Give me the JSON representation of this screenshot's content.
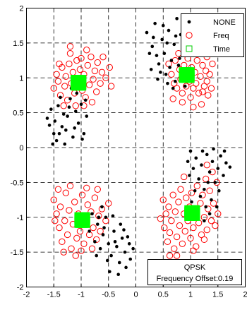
{
  "chart_data": {
    "type": "scatter",
    "title": "",
    "xlabel": "",
    "ylabel": "",
    "xlim": [
      -2,
      2
    ],
    "ylim": [
      -2,
      2
    ],
    "xticks": [
      "-2",
      "-1.5",
      "-1",
      "-0.5",
      "0",
      "0.5",
      "1",
      "1.5",
      "2"
    ],
    "yticks": [
      "-2",
      "-1.5",
      "-1",
      "-0.5",
      "0",
      "0.5",
      "1",
      "1.5",
      "2"
    ],
    "grid": true,
    "grid_style": "dashed",
    "legend_position": "top-right",
    "series": [
      {
        "name": "NONE",
        "marker": "dot",
        "color": "#000000",
        "points": [
          [
            -1.62,
            0.42
          ],
          [
            -1.55,
            0.55
          ],
          [
            -1.48,
            0.38
          ],
          [
            -1.5,
            0.2
          ],
          [
            -1.42,
            0.6
          ],
          [
            -1.35,
            0.3
          ],
          [
            -1.3,
            0.05
          ],
          [
            -1.25,
            0.45
          ],
          [
            -1.2,
            0.7
          ],
          [
            -1.15,
            0.15
          ],
          [
            -1.1,
            0.52
          ],
          [
            -1.05,
            0.35
          ],
          [
            -1.0,
            0.62
          ],
          [
            -0.95,
            0.2
          ],
          [
            -0.9,
            0.45
          ],
          [
            -1.38,
            0.72
          ],
          [
            -1.45,
            0.1
          ],
          [
            -1.18,
            0.85
          ],
          [
            -1.28,
            0.25
          ],
          [
            -0.98,
            0.12
          ],
          [
            -1.52,
            0.05
          ],
          [
            -1.08,
            0.78
          ],
          [
            -1.32,
            0.48
          ],
          [
            -1.22,
            0.58
          ],
          [
            -0.92,
            0.68
          ],
          [
            -1.4,
            0.2
          ],
          [
            -1.12,
            0.28
          ],
          [
            -1.58,
            0.32
          ],
          [
            0.2,
            1.65
          ],
          [
            0.3,
            1.45
          ],
          [
            0.35,
            1.78
          ],
          [
            0.42,
            1.2
          ],
          [
            0.48,
            1.55
          ],
          [
            0.52,
            1.35
          ],
          [
            0.55,
            1.05
          ],
          [
            0.6,
            1.68
          ],
          [
            0.65,
            1.25
          ],
          [
            0.7,
            1.48
          ],
          [
            0.72,
            0.95
          ],
          [
            0.78,
            1.18
          ],
          [
            0.82,
            1.62
          ],
          [
            0.85,
            1.38
          ],
          [
            0.88,
            1.02
          ],
          [
            0.92,
            1.55
          ],
          [
            0.45,
            1.08
          ],
          [
            0.58,
            0.92
          ],
          [
            0.38,
            1.32
          ],
          [
            0.62,
            1.15
          ],
          [
            0.75,
            1.85
          ],
          [
            0.28,
            1.12
          ],
          [
            0.5,
            1.75
          ],
          [
            0.8,
            1.28
          ],
          [
            0.68,
            0.85
          ],
          [
            0.4,
            0.98
          ],
          [
            0.95,
            1.4
          ],
          [
            0.32,
            1.58
          ],
          [
            0.9,
            0.88
          ],
          [
            0.57,
            1.5
          ],
          [
            0.25,
            1.35
          ],
          [
            0.73,
            1.6
          ],
          [
            1.0,
            -0.05
          ],
          [
            1.05,
            -0.3
          ],
          [
            1.1,
            -0.15
          ],
          [
            1.15,
            -0.45
          ],
          [
            1.2,
            -0.25
          ],
          [
            1.25,
            -0.6
          ],
          [
            1.3,
            -0.1
          ],
          [
            1.35,
            -0.35
          ],
          [
            1.4,
            -0.2
          ],
          [
            1.45,
            -0.5
          ],
          [
            1.5,
            -0.3
          ],
          [
            1.55,
            -0.12
          ],
          [
            1.6,
            -0.4
          ],
          [
            1.65,
            -0.22
          ],
          [
            1.38,
            -0.75
          ],
          [
            1.28,
            -0.85
          ],
          [
            1.18,
            -0.7
          ],
          [
            1.08,
            -0.62
          ],
          [
            0.98,
            -0.4
          ],
          [
            1.22,
            -0.05
          ],
          [
            1.42,
            -0.02
          ],
          [
            1.52,
            -0.62
          ],
          [
            1.32,
            -0.5
          ],
          [
            1.12,
            -0.88
          ],
          [
            1.02,
            -0.78
          ],
          [
            1.48,
            -0.85
          ],
          [
            1.62,
            -0.05
          ],
          [
            1.25,
            -1.05
          ],
          [
            1.35,
            -0.95
          ],
          [
            1.72,
            -0.28
          ],
          [
            0.95,
            -0.2
          ],
          [
            -0.9,
            -1.05
          ],
          [
            -0.85,
            -1.2
          ],
          [
            -0.8,
            -0.95
          ],
          [
            -0.75,
            -1.35
          ],
          [
            -0.7,
            -1.1
          ],
          [
            -0.65,
            -1.45
          ],
          [
            -0.6,
            -1.25
          ],
          [
            -0.55,
            -1.0
          ],
          [
            -0.5,
            -1.38
          ],
          [
            -0.45,
            -1.55
          ],
          [
            -0.4,
            -1.2
          ],
          [
            -0.35,
            -1.42
          ],
          [
            -0.3,
            -1.65
          ],
          [
            -0.25,
            -1.3
          ],
          [
            -0.2,
            -1.5
          ],
          [
            -0.15,
            -1.28
          ],
          [
            -0.1,
            -1.6
          ],
          [
            -0.62,
            -0.85
          ],
          [
            -0.52,
            -1.62
          ],
          [
            -0.42,
            -0.98
          ],
          [
            -0.28,
            -1.1
          ],
          [
            -0.18,
            -1.72
          ],
          [
            -0.72,
            -1.55
          ],
          [
            -0.48,
            -1.78
          ],
          [
            -0.38,
            -1.35
          ],
          [
            -0.58,
            -1.15
          ],
          [
            -0.05,
            -1.45
          ],
          [
            -0.32,
            -1.82
          ],
          [
            -0.68,
            -1.0
          ],
          [
            -0.22,
            -1.18
          ],
          [
            -0.12,
            -1.38
          ]
        ]
      },
      {
        "name": "Freq",
        "marker": "open-circle",
        "color": "#ff0000",
        "points": [
          [
            -1.5,
            0.85
          ],
          [
            -1.45,
            1.05
          ],
          [
            -1.42,
            0.95
          ],
          [
            -1.38,
            0.75
          ],
          [
            -1.35,
            1.15
          ],
          [
            -1.3,
            0.88
          ],
          [
            -1.28,
            1.02
          ],
          [
            -1.25,
            0.68
          ],
          [
            -1.22,
            1.2
          ],
          [
            -1.18,
            0.92
          ],
          [
            -1.15,
            1.08
          ],
          [
            -1.12,
            0.78
          ],
          [
            -1.08,
            1.25
          ],
          [
            -1.05,
            0.95
          ],
          [
            -1.02,
            1.12
          ],
          [
            -0.98,
            0.82
          ],
          [
            -0.95,
            1.05
          ],
          [
            -0.92,
            0.72
          ],
          [
            -0.88,
            1.18
          ],
          [
            -0.85,
            0.9
          ],
          [
            -0.82,
            1.3
          ],
          [
            -0.78,
            0.98
          ],
          [
            -0.75,
            1.1
          ],
          [
            -0.72,
            0.8
          ],
          [
            -0.7,
            1.22
          ],
          [
            -0.65,
            0.92
          ],
          [
            -0.62,
            1.08
          ],
          [
            -0.55,
            1.0
          ],
          [
            -0.48,
            1.15
          ],
          [
            -0.45,
            0.88
          ],
          [
            -1.32,
            0.6
          ],
          [
            -1.2,
            1.35
          ],
          [
            -0.9,
            1.4
          ],
          [
            -0.8,
            0.65
          ],
          [
            -1.1,
            0.6
          ],
          [
            -1.2,
            1.45
          ],
          [
            -0.6,
            1.3
          ],
          [
            -1.4,
            1.2
          ],
          [
            -1.0,
            1.28
          ],
          [
            -0.95,
            0.6
          ],
          [
            0.6,
            1.2
          ],
          [
            0.65,
            1.05
          ],
          [
            0.7,
            0.92
          ],
          [
            0.72,
            1.25
          ],
          [
            0.75,
            0.85
          ],
          [
            0.8,
            1.12
          ],
          [
            0.82,
            0.98
          ],
          [
            0.85,
            0.78
          ],
          [
            0.88,
            1.18
          ],
          [
            0.9,
            1.02
          ],
          [
            0.92,
            0.88
          ],
          [
            0.95,
            1.28
          ],
          [
            0.98,
            0.95
          ],
          [
            1.0,
            0.72
          ],
          [
            1.02,
            1.15
          ],
          [
            1.05,
            0.85
          ],
          [
            1.08,
            1.08
          ],
          [
            1.1,
            0.92
          ],
          [
            1.12,
            1.25
          ],
          [
            1.15,
            0.78
          ],
          [
            1.18,
            1.02
          ],
          [
            1.2,
            0.62
          ],
          [
            1.22,
            1.18
          ],
          [
            1.25,
            0.88
          ],
          [
            1.28,
            1.1
          ],
          [
            1.3,
            0.95
          ],
          [
            1.32,
            0.75
          ],
          [
            1.35,
            1.05
          ],
          [
            1.38,
            0.85
          ],
          [
            1.4,
            1.2
          ],
          [
            0.68,
            0.7
          ],
          [
            0.78,
            1.35
          ],
          [
            1.05,
            0.58
          ],
          [
            1.15,
            1.35
          ],
          [
            1.3,
            1.3
          ],
          [
            0.85,
            0.65
          ],
          [
            1.22,
            0.8
          ],
          [
            0.95,
            1.38
          ],
          [
            -1.5,
            -0.75
          ],
          [
            -1.45,
            -0.95
          ],
          [
            -1.4,
            -1.15
          ],
          [
            -1.38,
            -0.85
          ],
          [
            -1.35,
            -1.35
          ],
          [
            -1.3,
            -1.05
          ],
          [
            -1.28,
            -0.65
          ],
          [
            -1.25,
            -1.25
          ],
          [
            -1.22,
            -0.9
          ],
          [
            -1.18,
            -1.45
          ],
          [
            -1.15,
            -1.1
          ],
          [
            -1.12,
            -0.78
          ],
          [
            -1.08,
            -1.3
          ],
          [
            -1.05,
            -0.95
          ],
          [
            -1.02,
            -1.2
          ],
          [
            -0.98,
            -0.68
          ],
          [
            -0.95,
            -1.38
          ],
          [
            -0.92,
            -1.05
          ],
          [
            -0.88,
            -0.82
          ],
          [
            -0.85,
            -1.25
          ],
          [
            -0.82,
            -0.92
          ],
          [
            -0.78,
            -1.15
          ],
          [
            -0.75,
            -0.72
          ],
          [
            -0.72,
            -1.32
          ],
          [
            -0.68,
            -0.98
          ],
          [
            -0.65,
            -1.2
          ],
          [
            -0.62,
            -0.88
          ],
          [
            -0.55,
            -1.05
          ],
          [
            -0.5,
            -0.8
          ],
          [
            -1.42,
            -0.6
          ],
          [
            -1.32,
            -1.5
          ],
          [
            -1.1,
            -1.55
          ],
          [
            -0.9,
            -0.58
          ],
          [
            -0.8,
            -1.45
          ],
          [
            -1.2,
            -0.55
          ],
          [
            -1.0,
            -1.48
          ],
          [
            -0.7,
            -0.6
          ],
          [
            -1.48,
            -1.05
          ],
          [
            0.5,
            -0.75
          ],
          [
            0.52,
            -1.15
          ],
          [
            0.55,
            -0.95
          ],
          [
            0.58,
            -1.35
          ],
          [
            0.6,
            -0.85
          ],
          [
            0.62,
            -1.22
          ],
          [
            0.65,
            -1.05
          ],
          [
            0.68,
            -0.68
          ],
          [
            0.7,
            -1.45
          ],
          [
            0.72,
            -0.92
          ],
          [
            0.75,
            -1.28
          ],
          [
            0.78,
            -0.78
          ],
          [
            0.8,
            -1.12
          ],
          [
            0.82,
            -0.6
          ],
          [
            0.85,
            -1.38
          ],
          [
            0.88,
            -0.95
          ],
          [
            0.9,
            -1.2
          ],
          [
            0.92,
            -0.72
          ],
          [
            0.95,
            -1.05
          ],
          [
            0.98,
            -0.85
          ],
          [
            1.0,
            -1.3
          ],
          [
            1.02,
            -0.65
          ],
          [
            1.05,
            -1.15
          ],
          [
            1.08,
            -0.9
          ],
          [
            1.1,
            -1.42
          ],
          [
            1.12,
            -0.55
          ],
          [
            1.15,
            -1.08
          ],
          [
            1.18,
            -0.8
          ],
          [
            1.2,
            -1.25
          ],
          [
            1.22,
            -0.68
          ],
          [
            1.25,
            -1.0
          ],
          [
            1.28,
            -0.45
          ],
          [
            1.3,
            -1.18
          ],
          [
            1.32,
            -0.88
          ],
          [
            1.35,
            -0.62
          ],
          [
            1.38,
            -1.05
          ],
          [
            1.4,
            -0.35
          ],
          [
            1.42,
            -0.8
          ],
          [
            1.45,
            -1.12
          ],
          [
            1.48,
            -0.5
          ],
          [
            1.5,
            -0.95
          ],
          [
            0.45,
            -1.02
          ],
          [
            0.75,
            -1.55
          ],
          [
            1.05,
            -1.48
          ],
          [
            1.25,
            -1.32
          ],
          [
            0.62,
            -1.55
          ],
          [
            1.3,
            -0.25
          ],
          [
            0.88,
            -0.42
          ]
        ]
      },
      {
        "name": "Time",
        "marker": "open-square",
        "color": "#00ff00",
        "clusters": [
          {
            "x": -1.05,
            "y": 0.93
          },
          {
            "x": 0.93,
            "y": 1.04
          },
          {
            "x": -0.98,
            "y": -1.04
          },
          {
            "x": 1.03,
            "y": -0.94
          }
        ]
      }
    ],
    "annotation": {
      "lines": [
        "QPSK",
        "Frequency Offset:0.19"
      ],
      "position": "bottom-right"
    }
  }
}
